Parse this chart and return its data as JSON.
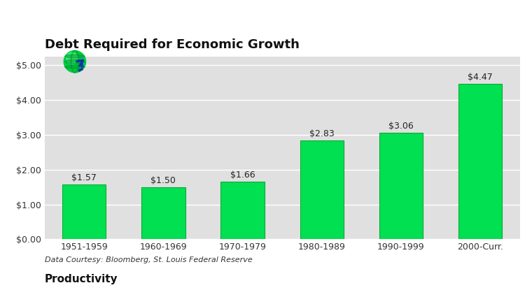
{
  "title": "Debt Required for Economic Growth",
  "categories": [
    "1951-1959",
    "1960-1969",
    "1970-1979",
    "1980-1989",
    "1990-1999",
    "2000-Curr."
  ],
  "values": [
    1.57,
    1.5,
    1.66,
    2.83,
    3.06,
    4.47
  ],
  "labels": [
    "$1.57",
    "$1.50",
    "$1.66",
    "$2.83",
    "$3.06",
    "$4.47"
  ],
  "bar_color": "#00E050",
  "bar_edge_color": "#00AA33",
  "background_color": "#E0E0E0",
  "outer_background": "#FFFFFF",
  "ylim": [
    0,
    5.25
  ],
  "yticks": [
    0.0,
    1.0,
    2.0,
    3.0,
    4.0,
    5.0
  ],
  "ytick_labels": [
    "$0.00",
    "$1.00",
    "$2.00",
    "$3.00",
    "$4.00",
    "$5.00"
  ],
  "title_fontsize": 13,
  "tick_fontsize": 9,
  "label_fontsize": 9,
  "footnote": "Data Courtesy: Bloomberg, St. Louis Federal Reserve",
  "footer_title": "Productivity",
  "grid_color": "#FFFFFF",
  "bar_width": 0.55
}
